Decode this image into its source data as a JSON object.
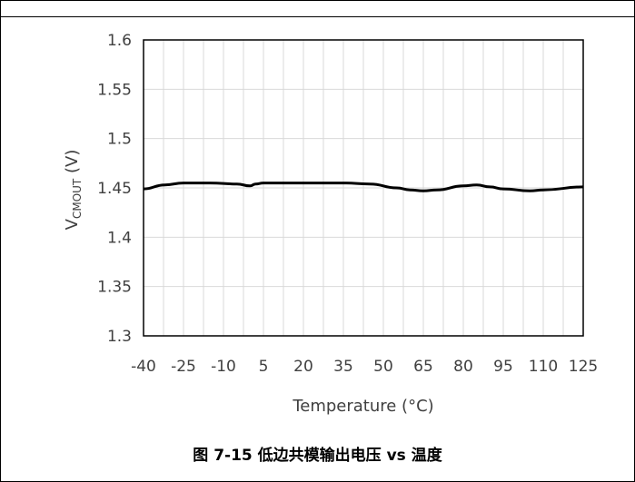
{
  "caption": "图 7-15 低边共模输出电压 vs 温度",
  "chart_data": {
    "type": "line",
    "xlabel": "Temperature (°C)",
    "ylabel": {
      "base": "V",
      "subscript": "CMOUT",
      "unit": " (V)"
    },
    "categories": [
      "-40",
      "-25",
      "-10",
      "5",
      "20",
      "35",
      "50",
      "65",
      "80",
      "95",
      "110",
      "125"
    ],
    "xlim": [
      -40,
      125
    ],
    "ylim": [
      1.3,
      1.6
    ],
    "yticks": [
      "1.3",
      "1.35",
      "1.4",
      "1.45",
      "1.5",
      "1.55",
      "1.6"
    ],
    "grid": true,
    "series": [
      {
        "color": "#000000",
        "x": [
          -40,
          -32,
          -25,
          -15,
          -5,
          0,
          2,
          5,
          10,
          20,
          35,
          45,
          55,
          60,
          65,
          70,
          80,
          85,
          90,
          95,
          105,
          110,
          125
        ],
        "y": [
          1.449,
          1.453,
          1.455,
          1.455,
          1.454,
          1.452,
          1.454,
          1.455,
          1.455,
          1.455,
          1.455,
          1.454,
          1.45,
          1.448,
          1.447,
          1.448,
          1.452,
          1.453,
          1.451,
          1.449,
          1.447,
          1.448,
          1.451
        ]
      }
    ]
  }
}
